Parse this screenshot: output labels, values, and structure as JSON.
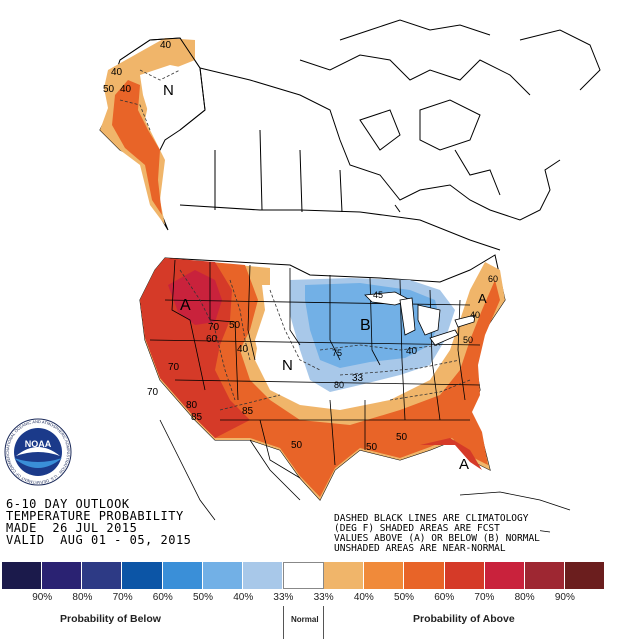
{
  "outlook": {
    "line1": "6-10 DAY OUTLOOK",
    "line2": "TEMPERATURE PROBABILITY",
    "line3": "MADE  26 JUL 2015",
    "line4": "VALID  AUG 01 - 05, 2015"
  },
  "note": {
    "line1": "DASHED BLACK LINES ARE CLIMATOLOGY",
    "line2": "(DEG F) SHADED AREAS ARE FCST",
    "line3": "VALUES ABOVE (A) OR BELOW (B) NORMAL",
    "line4": "UNSHADED AREAS ARE NEAR-NORMAL"
  },
  "map_labels": {
    "alaska_n": "N",
    "west_a": "A",
    "midwest_b": "B",
    "plains_n": "N",
    "southeast_a": "A",
    "northeast_a": "A"
  },
  "climatology_labels": {
    "ak_40_top": "40",
    "ak_40_left": "40",
    "ak_50": "50",
    "ak_40b": "40",
    "w_70a": "70",
    "w_70b": "70",
    "w_60": "60",
    "w_50": "50",
    "w_40": "40",
    "w_80": "80",
    "w_85": "85",
    "w_85b": "85",
    "w_70c": "70",
    "mw_45": "45",
    "mw_40": "40",
    "mw_75": "75",
    "mw_80": "80",
    "mw_33": "33",
    "s_50a": "50",
    "s_50b": "50",
    "s_50c": "50",
    "ne_40": "40",
    "ne_50": "50",
    "ne_60": "60"
  },
  "legend": {
    "colors": [
      "#1b1a4b",
      "#2a2272",
      "#2d3a85",
      "#0c55a6",
      "#3a8fd8",
      "#72b0e6",
      "#a8c8e9",
      "#ffffff",
      "#f0b56a",
      "#f08a3a",
      "#e86428",
      "#d53a28",
      "#c9223c",
      "#9e2732",
      "#6b1e1e"
    ],
    "ticks": [
      "90%",
      "80%",
      "70%",
      "60%",
      "50%",
      "40%",
      "33%",
      "33%",
      "40%",
      "50%",
      "60%",
      "70%",
      "80%",
      "90%"
    ],
    "below_label": "Probability of Below",
    "normal_label": "Normal",
    "above_label": "Probability of Above"
  },
  "logo": {
    "center_text": "NOAA",
    "ring_text": "NATIONAL OCEANIC AND ATMOSPHERIC ADMINISTRATION · U.S. DEPARTMENT OF COMMERCE"
  }
}
